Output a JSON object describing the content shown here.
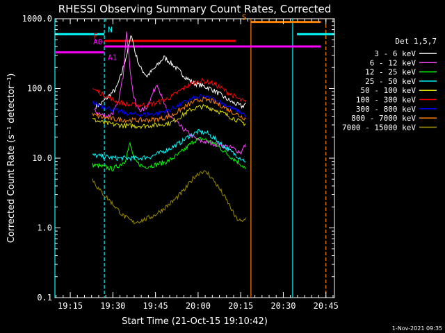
{
  "chart_data": {
    "type": "line",
    "title": "RHESSI Observing Summary Count Rates, Corrected",
    "xlabel": "Start Time (21-Oct-15 19:10:42)",
    "ylabel": "Corrected Count Rate (s⁻¹ detector⁻¹)",
    "yscale": "log",
    "ylim": [
      0.1,
      1000
    ],
    "xlim_minutes": [
      19.16,
      20.8
    ],
    "y_ticks": [
      {
        "value": 1000,
        "label": "1000.0"
      },
      {
        "value": 100,
        "label": "100.0"
      },
      {
        "value": 10,
        "label": "10.0"
      },
      {
        "value": 1,
        "label": "1.0"
      },
      {
        "value": 0.1,
        "label": "0.1"
      }
    ],
    "x_ticks": [
      {
        "value": 19.25,
        "label": "19:15"
      },
      {
        "value": 19.5,
        "label": "19:30"
      },
      {
        "value": 19.75,
        "label": "19:45"
      },
      {
        "value": 20.0,
        "label": "20:00"
      },
      {
        "value": 20.25,
        "label": "20:15"
      },
      {
        "value": 20.5,
        "label": "20:30"
      },
      {
        "value": 20.75,
        "label": "20:45"
      }
    ],
    "legend": {
      "title": "Det 1,5,7",
      "placement": "right"
    },
    "series": [
      {
        "name": "3 - 6 keV",
        "color": "#ffffff",
        "x": [
          19.4,
          19.43,
          19.47,
          19.52,
          19.55,
          19.58,
          19.61,
          19.63,
          19.66,
          19.7,
          19.75,
          19.8,
          19.86,
          19.92,
          19.97,
          20.02,
          20.07,
          20.12,
          20.17,
          20.22,
          20.26,
          20.28
        ],
        "y": [
          55,
          60,
          75,
          100,
          160,
          300,
          600,
          330,
          200,
          150,
          200,
          280,
          210,
          150,
          120,
          110,
          100,
          85,
          70,
          60,
          55,
          62
        ]
      },
      {
        "name": "6 - 12 keV",
        "color": "#ff44ff",
        "x": [
          19.39,
          19.43,
          19.47,
          19.5,
          19.53,
          19.56,
          19.58,
          19.6,
          19.62,
          19.64,
          19.67,
          19.7,
          19.73,
          19.76,
          19.79,
          19.82,
          19.86,
          19.9,
          19.95,
          20.0,
          20.05,
          20.1,
          20.15,
          20.2,
          20.25,
          20.28
        ],
        "y": [
          48,
          42,
          40,
          45,
          60,
          150,
          700,
          200,
          80,
          55,
          48,
          55,
          80,
          120,
          70,
          45,
          35,
          28,
          22,
          18,
          17,
          16,
          15,
          14,
          12,
          16
        ]
      },
      {
        "name": "12 - 25 keV",
        "color": "#00ff00",
        "x": [
          19.38,
          19.45,
          19.5,
          19.54,
          19.57,
          19.6,
          19.63,
          19.68,
          19.75,
          19.82,
          19.88,
          19.93,
          19.98,
          20.03,
          20.08,
          20.13,
          20.18,
          20.23,
          20.27,
          20.28
        ],
        "y": [
          8,
          7.5,
          7,
          8,
          9,
          16,
          9,
          7.5,
          8,
          9,
          11,
          14,
          18,
          19,
          17,
          14,
          11,
          9,
          7.5,
          7
        ]
      },
      {
        "name": "25 - 50 keV",
        "color": "#00ffff",
        "x": [
          19.38,
          19.45,
          19.52,
          19.58,
          19.65,
          19.72,
          19.78,
          19.84,
          19.9,
          19.95,
          20.0,
          20.05,
          20.1,
          20.15,
          20.2,
          20.25,
          20.28
        ],
        "y": [
          11,
          10.5,
          10,
          10,
          10,
          10.5,
          12,
          14,
          17,
          21,
          24,
          23,
          19,
          15,
          12,
          10,
          9
        ]
      },
      {
        "name": "50 - 100 keV",
        "color": "#dddd00",
        "x": [
          19.38,
          19.45,
          19.52,
          19.6,
          19.68,
          19.76,
          19.84,
          19.9,
          19.96,
          20.02,
          20.08,
          20.14,
          20.2,
          20.25,
          20.28
        ],
        "y": [
          36,
          32,
          30,
          29,
          29,
          30,
          32,
          40,
          50,
          55,
          52,
          45,
          38,
          33,
          31
        ]
      },
      {
        "name": "100 - 300 keV",
        "color": "#ff0000",
        "x": [
          19.38,
          19.45,
          19.52,
          19.6,
          19.68,
          19.76,
          19.84,
          19.9,
          19.96,
          20.02,
          20.08,
          20.14,
          20.2,
          20.25,
          20.28
        ],
        "y": [
          100,
          80,
          65,
          58,
          58,
          62,
          75,
          95,
          118,
          130,
          120,
          100,
          80,
          68,
          64
        ]
      },
      {
        "name": "300 - 800 keV",
        "color": "#0000ff",
        "x": [
          19.38,
          19.45,
          19.52,
          19.6,
          19.68,
          19.76,
          19.84,
          19.9,
          19.96,
          20.02,
          20.08,
          20.14,
          20.2,
          20.25,
          20.28
        ],
        "y": [
          62,
          55,
          48,
          43,
          42,
          44,
          50,
          60,
          70,
          76,
          72,
          62,
          52,
          45,
          42
        ]
      },
      {
        "name": "800 - 7000 keV",
        "color": "#ff8000",
        "x": [
          19.38,
          19.45,
          19.52,
          19.6,
          19.68,
          19.76,
          19.84,
          19.9,
          19.96,
          20.02,
          20.08,
          20.14,
          20.2,
          20.25,
          20.28
        ],
        "y": [
          42,
          38,
          36,
          35,
          35,
          36,
          40,
          50,
          62,
          70,
          66,
          56,
          46,
          40,
          37
        ]
      },
      {
        "name": "7000 - 15000 keV",
        "color": "#9a8a00",
        "x": [
          19.38,
          19.42,
          19.46,
          19.5,
          19.56,
          19.62,
          19.68,
          19.74,
          19.8,
          19.86,
          19.92,
          19.98,
          20.02,
          20.06,
          20.1,
          20.14,
          20.18,
          20.22,
          20.26,
          20.28
        ],
        "y": [
          5,
          3.5,
          2.8,
          2.2,
          1.5,
          1.2,
          1.3,
          1.5,
          1.9,
          2.5,
          3.5,
          5.5,
          6.5,
          6.0,
          4.5,
          3.2,
          2.2,
          1.4,
          1.2,
          1.4
        ]
      }
    ],
    "horizontal_markers": [
      {
        "label": "N",
        "color": "#00ffff",
        "y": 600,
        "x_ranges": [
          [
            19.16,
            19.45
          ],
          [
            20.58,
            20.8
          ]
        ]
      },
      {
        "label": "F",
        "color": "#ff0000",
        "y": 480,
        "x_ranges": [
          [
            19.45,
            20.22
          ]
        ]
      },
      {
        "label": "A0",
        "color": "#ff00ff",
        "y": 400,
        "x_ranges": [
          [
            19.45,
            20.72
          ]
        ]
      },
      {
        "label": "A1",
        "color": "#ff00ff",
        "y": 330,
        "x_ranges": [
          [
            19.16,
            19.45
          ]
        ]
      },
      {
        "label": "S",
        "color": "#ff8000",
        "y": 900,
        "x_ranges": [
          [
            20.31,
            20.72
          ]
        ]
      }
    ],
    "vertical_markers": [
      {
        "x": 19.16,
        "color": "#00ffff",
        "style": "solid"
      },
      {
        "x": 19.45,
        "color": "#00ffff",
        "style": "dashed"
      },
      {
        "x": 20.31,
        "color": "#ff8000",
        "style": "solid"
      },
      {
        "x": 20.555,
        "color": "#00ffff",
        "style": "solid"
      },
      {
        "x": 20.75,
        "color": "#ff8000",
        "style": "dashed"
      }
    ]
  },
  "footer": {
    "date_stamp": "1-Nov-2021 09:35"
  }
}
